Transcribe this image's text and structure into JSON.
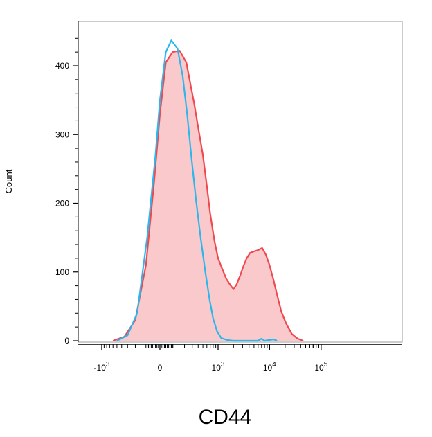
{
  "chart_data": {
    "type": "area",
    "xlabel": "CD44",
    "ylabel": "Count",
    "x_scale": "biexponential",
    "ylim": [
      0,
      460
    ],
    "y_ticks": [
      {
        "value": 0,
        "label": "0"
      },
      {
        "value": 100,
        "label": "100"
      },
      {
        "value": 200,
        "label": "200"
      },
      {
        "value": 300,
        "label": "300"
      },
      {
        "value": 400,
        "label": "400"
      }
    ],
    "x_ticks": [
      {
        "value": -1000,
        "base": "-10",
        "exp": "3"
      },
      {
        "value": 0,
        "base": "0",
        "exp": ""
      },
      {
        "value": 1000,
        "base": "10",
        "exp": "3"
      },
      {
        "value": 10000,
        "base": "10",
        "exp": "4"
      },
      {
        "value": 100000,
        "base": "10",
        "exp": "5"
      }
    ],
    "grid": false,
    "legend": "none",
    "series": [
      {
        "color": "#f0484f",
        "fill": "#f9c9cb",
        "filled": true,
        "points": [
          [
            -600,
            0
          ],
          [
            -350,
            6
          ],
          [
            -200,
            30
          ],
          [
            -100,
            110
          ],
          [
            -40,
            230
          ],
          [
            0,
            330
          ],
          [
            40,
            405
          ],
          [
            90,
            420
          ],
          [
            150,
            422
          ],
          [
            220,
            405
          ],
          [
            280,
            370
          ],
          [
            330,
            345
          ],
          [
            400,
            310
          ],
          [
            500,
            270
          ],
          [
            600,
            225
          ],
          [
            700,
            185
          ],
          [
            850,
            145
          ],
          [
            1000,
            120
          ],
          [
            1200,
            105
          ],
          [
            1450,
            90
          ],
          [
            1700,
            82
          ],
          [
            2000,
            75
          ],
          [
            2300,
            82
          ],
          [
            2700,
            95
          ],
          [
            3100,
            108
          ],
          [
            3600,
            120
          ],
          [
            4200,
            128
          ],
          [
            5000,
            130
          ],
          [
            6000,
            132
          ],
          [
            7200,
            135
          ],
          [
            8500,
            125
          ],
          [
            10000,
            110
          ],
          [
            12000,
            88
          ],
          [
            14500,
            62
          ],
          [
            17000,
            42
          ],
          [
            21000,
            25
          ],
          [
            27000,
            10
          ],
          [
            35000,
            3
          ],
          [
            45000,
            0
          ]
        ]
      },
      {
        "color": "#2ab7ee",
        "filled": false,
        "points": [
          [
            -500,
            0
          ],
          [
            -300,
            8
          ],
          [
            -180,
            40
          ],
          [
            -90,
            150
          ],
          [
            -30,
            270
          ],
          [
            0,
            350
          ],
          [
            40,
            420
          ],
          [
            80,
            437
          ],
          [
            130,
            425
          ],
          [
            180,
            385
          ],
          [
            230,
            330
          ],
          [
            290,
            265
          ],
          [
            360,
            205
          ],
          [
            450,
            150
          ],
          [
            560,
            100
          ],
          [
            680,
            60
          ],
          [
            800,
            32
          ],
          [
            950,
            14
          ],
          [
            1150,
            4
          ],
          [
            1500,
            1
          ],
          [
            2000,
            0
          ],
          [
            6000,
            0
          ],
          [
            7000,
            3
          ],
          [
            8000,
            0
          ],
          [
            12000,
            2
          ],
          [
            14000,
            0
          ]
        ]
      }
    ]
  }
}
